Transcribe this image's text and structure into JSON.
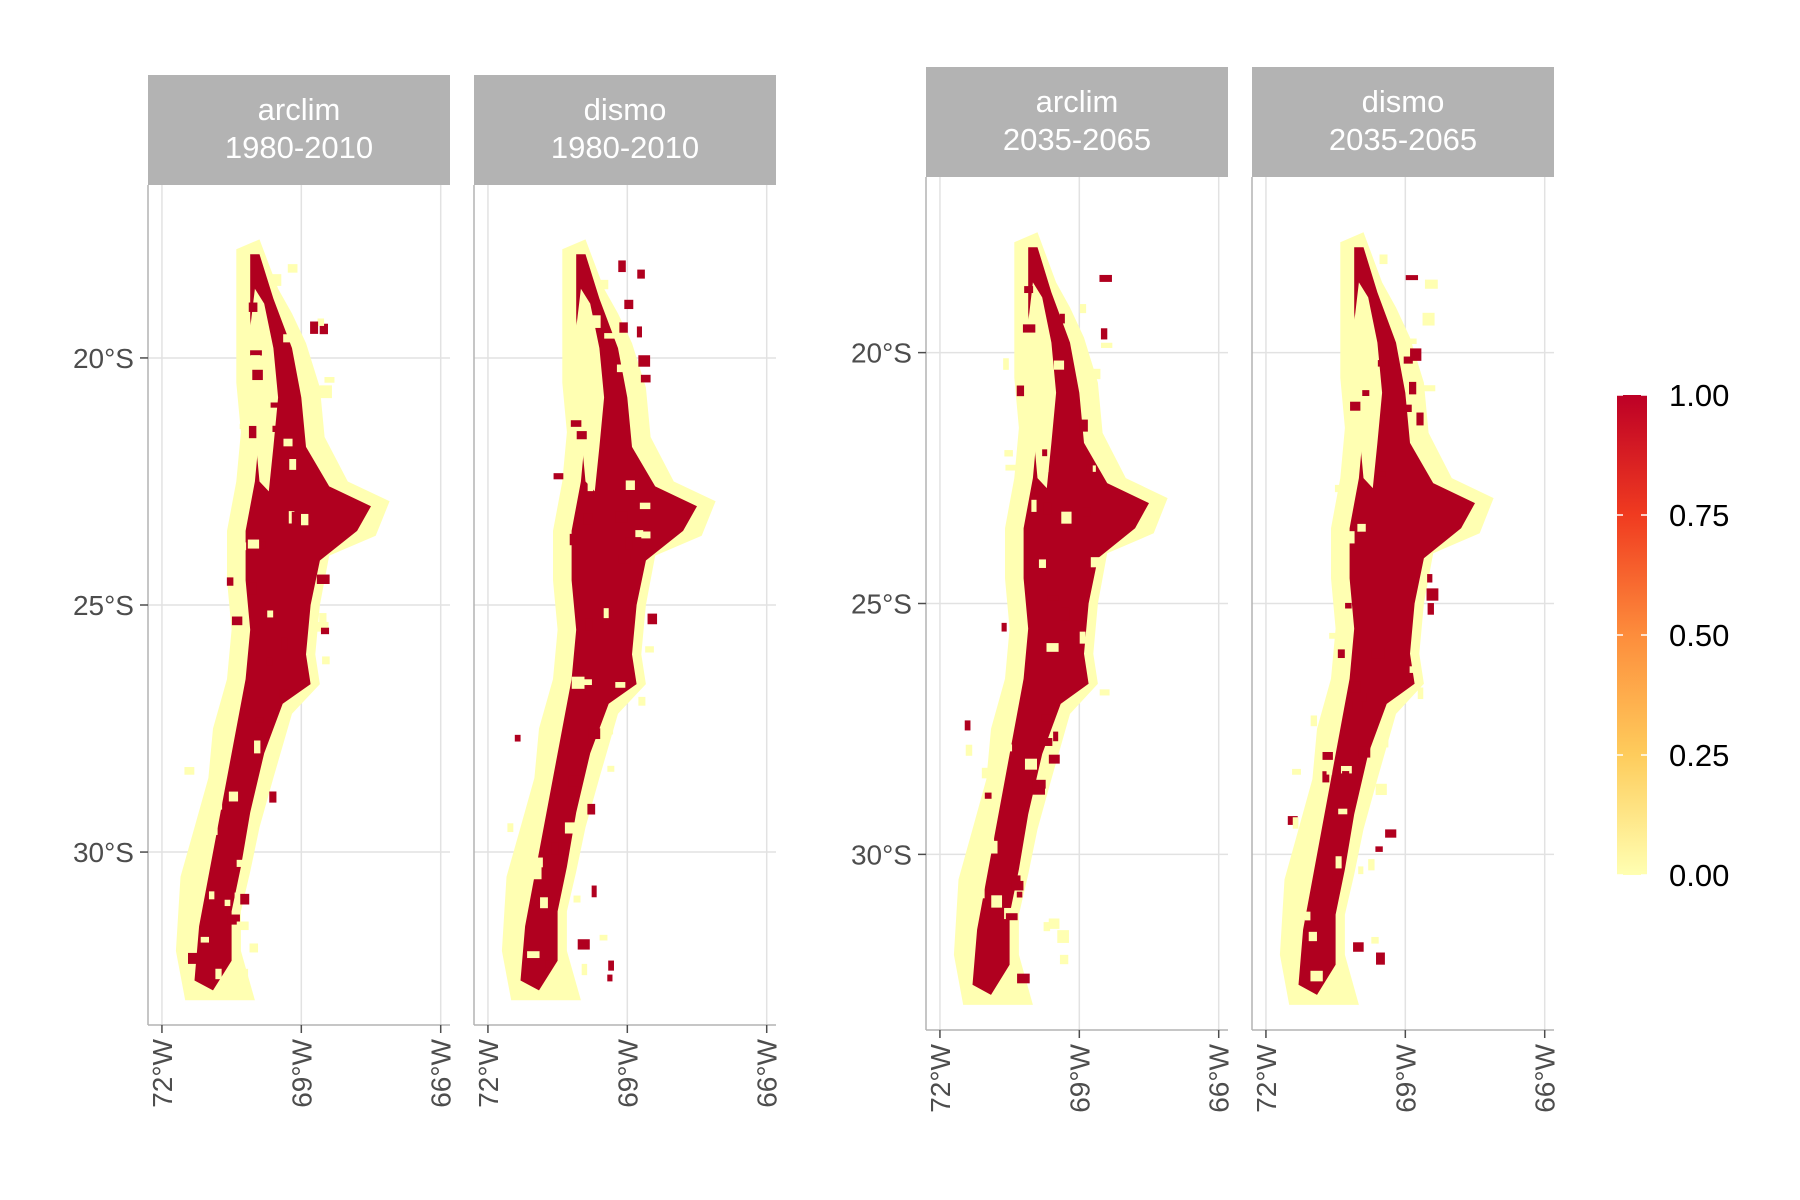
{
  "figure": {
    "groups": [
      {
        "panels": [
          {
            "strip": [
              "arclim",
              "1980-2010"
            ]
          },
          {
            "strip": [
              "dismo",
              "1980-2010"
            ]
          }
        ]
      },
      {
        "panels": [
          {
            "strip": [
              "arclim",
              "2035-2065"
            ]
          },
          {
            "strip": [
              "dismo",
              "2035-2065"
            ]
          }
        ]
      }
    ],
    "axes": {
      "x_ticks": [
        {
          "label": "72°W",
          "value": -72
        },
        {
          "label": "69°W",
          "value": -69
        },
        {
          "label": "66°W",
          "value": -66
        }
      ],
      "y_ticks": [
        {
          "label": "20°S",
          "value": -20
        },
        {
          "label": "25°S",
          "value": -25
        },
        {
          "label": "30°S",
          "value": -30
        }
      ],
      "x_range": [
        -72.3,
        -65.8
      ],
      "y_range": [
        -33.5,
        -16.5
      ]
    },
    "legend": {
      "placement": "right",
      "colors": [
        "#ffffb2",
        "#fecc5c",
        "#fd8d3c",
        "#f03b20",
        "#bd0026"
      ],
      "ticks": [
        {
          "label": "1.00",
          "value": 1.0
        },
        {
          "label": "0.75",
          "value": 0.75
        },
        {
          "label": "0.50",
          "value": 0.5
        },
        {
          "label": "0.25",
          "value": 0.25
        },
        {
          "label": "0.00",
          "value": 0.0
        }
      ]
    },
    "colors": {
      "present": "#b0001f",
      "absent": "#ffffb2",
      "strip_bg": "#b3b3b3",
      "strip_text": "#ffffff",
      "grid": "#e2e2e2",
      "axis_text": "#4d4d4d"
    }
  }
}
